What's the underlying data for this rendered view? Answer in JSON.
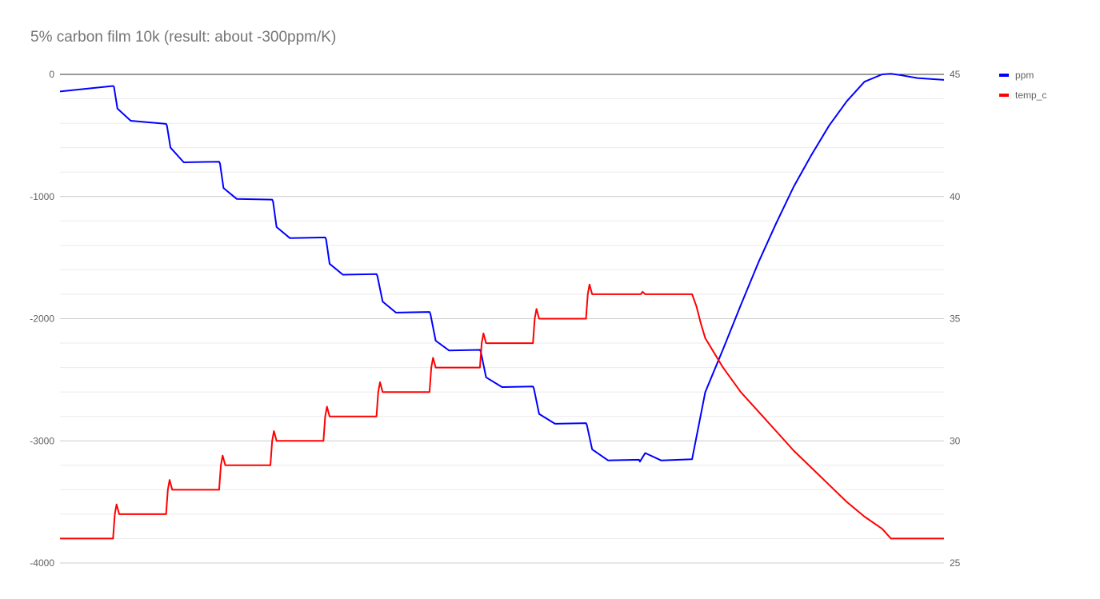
{
  "chart_data": {
    "type": "line",
    "title": "5% carbon film 10k (result: about -300ppm/K)",
    "y_left": {
      "ylim": [
        -4000,
        0
      ],
      "ticks": [
        "0",
        "-1000",
        "-2000",
        "-3000",
        "-4000"
      ]
    },
    "y_right": {
      "ylim": [
        25,
        45
      ],
      "ticks": [
        "45",
        "40",
        "35",
        "30",
        "25"
      ]
    },
    "grid": true,
    "legend_position": "right",
    "x_range": [
      0,
      100
    ],
    "series": [
      {
        "name": "ppm",
        "axis": "left",
        "color": "#0000ff",
        "x": [
          0,
          6,
          6.1,
          6.5,
          8,
          12,
          12.1,
          12.5,
          14,
          18,
          18.1,
          18.5,
          20,
          24,
          24.1,
          24.5,
          26,
          30,
          30.1,
          30.5,
          32,
          35.8,
          35.9,
          36.5,
          38,
          41.8,
          41.9,
          42.5,
          44,
          47.5,
          47.6,
          48.2,
          50,
          53.5,
          53.6,
          54.2,
          56,
          59.5,
          59.6,
          60.2,
          62,
          65.5,
          65.6,
          66.2,
          68,
          71.5,
          73,
          75,
          77,
          79,
          81,
          83,
          85,
          87,
          89,
          91,
          93,
          94,
          95,
          97,
          100
        ],
        "y": [
          -140,
          -95,
          -100,
          -280,
          -380,
          -405,
          -420,
          -600,
          -720,
          -715,
          -730,
          -930,
          -1020,
          -1025,
          -1040,
          -1250,
          -1340,
          -1335,
          -1350,
          -1550,
          -1640,
          -1635,
          -1650,
          -1860,
          -1950,
          -1945,
          -1960,
          -2180,
          -2260,
          -2255,
          -2270,
          -2480,
          -2560,
          -2555,
          -2570,
          -2780,
          -2860,
          -2855,
          -2870,
          -3070,
          -3160,
          -3155,
          -3170,
          -3100,
          -3160,
          -3150,
          -2600,
          -2250,
          -1890,
          -1540,
          -1220,
          -920,
          -660,
          -420,
          -220,
          -60,
          0,
          5,
          -5,
          -30,
          -45
        ]
      },
      {
        "name": "temp_c",
        "axis": "right",
        "color": "#ff0000",
        "x": [
          0,
          6,
          6.2,
          6.4,
          6.7,
          12,
          12.2,
          12.4,
          12.7,
          18,
          18.2,
          18.4,
          18.7,
          23.8,
          24,
          24.2,
          24.5,
          29.8,
          30,
          30.2,
          30.5,
          35.8,
          36,
          36.2,
          36.5,
          41.8,
          42,
          42.2,
          42.5,
          47.5,
          47.7,
          47.9,
          48.2,
          53.5,
          53.7,
          53.9,
          54.2,
          59.5,
          59.7,
          59.9,
          60.2,
          65.5,
          65.7,
          65.9,
          66.2,
          71.5,
          72,
          72.5,
          73,
          74,
          75,
          77,
          79,
          81,
          83,
          85,
          87,
          89,
          91,
          93,
          94,
          100
        ],
        "y": [
          26,
          26,
          27,
          27.4,
          27,
          27,
          28,
          28.4,
          28,
          28,
          29,
          29.4,
          29,
          29,
          30,
          30.4,
          30,
          30,
          31,
          31.4,
          31,
          31,
          32,
          32.4,
          32,
          32,
          33,
          33.4,
          33,
          33,
          34,
          34.4,
          34,
          34,
          35,
          35.4,
          35,
          35,
          36,
          36.4,
          36,
          36,
          36,
          36.1,
          36,
          36,
          35.5,
          34.8,
          34.2,
          33.6,
          33,
          32,
          31.2,
          30.4,
          29.6,
          28.9,
          28.2,
          27.5,
          26.9,
          26.4,
          26,
          26
        ]
      }
    ]
  }
}
